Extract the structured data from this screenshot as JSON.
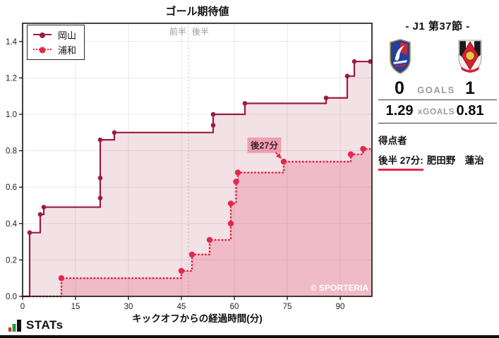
{
  "chart_data": {
    "type": "line",
    "title": "ゴール期待値",
    "xlabel": "キックオフからの経過時間(分)",
    "ylabel": "",
    "xlim": [
      0,
      99
    ],
    "ylim": [
      0,
      1.5
    ],
    "xticks": [
      0,
      15,
      30,
      45,
      60,
      75,
      90
    ],
    "yticks": [
      0.0,
      0.2,
      0.4,
      0.6,
      0.8,
      1.0,
      1.2,
      1.4
    ],
    "ytick_labels": [
      "0.0",
      "0.2",
      "0.4",
      "0.6",
      "0.8",
      "1.0",
      "1.2",
      "1.4"
    ],
    "grid": true,
    "legend_position": "upper left",
    "halftime_min": 47,
    "half_labels": {
      "first": "前半",
      "second": "後半"
    },
    "watermark": "© SPORTERIA",
    "annotation": {
      "text": "後27分",
      "target_min": 74,
      "target_xg": 0.74,
      "label_min": 68.5,
      "label_xg": 0.83
    },
    "series": [
      {
        "key": "okayama",
        "name": "岡山",
        "color": "#9b1c3f",
        "fill": "rgba(155,28,63,0.13)",
        "line_style": "solid",
        "marker_r": 3.3,
        "final_xg": 1.29,
        "steps": [
          [
            0,
            0
          ],
          [
            2,
            0.35
          ],
          [
            5,
            0.45
          ],
          [
            6,
            0.49
          ],
          [
            22,
            0.86
          ],
          [
            26,
            0.9
          ],
          [
            54,
            1.0
          ],
          [
            63,
            1.06
          ],
          [
            86,
            1.09
          ],
          [
            92,
            1.21
          ],
          [
            94,
            1.29
          ]
        ],
        "markers": [
          [
            2,
            0.35
          ],
          [
            5,
            0.45
          ],
          [
            6,
            0.49
          ],
          [
            22,
            0.54
          ],
          [
            22,
            0.65
          ],
          [
            22,
            0.86
          ],
          [
            26,
            0.9
          ],
          [
            54,
            0.94
          ],
          [
            54,
            1.0
          ],
          [
            63,
            1.06
          ],
          [
            86,
            1.09
          ],
          [
            92,
            1.21
          ],
          [
            94,
            1.29
          ],
          [
            98.5,
            1.29
          ]
        ]
      },
      {
        "key": "urawa",
        "name": "浦和",
        "color": "#e8254a",
        "fill": "rgba(232,37,74,0.20)",
        "line_style": "dotted",
        "marker_r": 4.2,
        "final_xg": 0.81,
        "steps": [
          [
            0,
            0
          ],
          [
            11,
            0.1
          ],
          [
            45,
            0.14
          ],
          [
            48,
            0.23
          ],
          [
            53,
            0.31
          ],
          [
            59,
            0.51
          ],
          [
            60.5,
            0.63
          ],
          [
            61,
            0.68
          ],
          [
            74,
            0.74
          ],
          [
            93,
            0.78
          ],
          [
            96.5,
            0.81
          ]
        ],
        "markers": [
          [
            11,
            0.1
          ],
          [
            45,
            0.14
          ],
          [
            48,
            0.23
          ],
          [
            53,
            0.31
          ],
          [
            59,
            0.4
          ],
          [
            59,
            0.51
          ],
          [
            60.5,
            0.63
          ],
          [
            61,
            0.68
          ],
          [
            74,
            0.74
          ],
          [
            93,
            0.78
          ],
          [
            96.5,
            0.81
          ]
        ]
      }
    ]
  },
  "panel": {
    "title": "- J1 第37節 -",
    "score": {
      "home": "0",
      "label": "GOALS",
      "away": "1"
    },
    "xgoals": {
      "home": "1.29",
      "label": "xGOALS",
      "away": "0.81"
    },
    "scorers_heading": "得点者",
    "scorer": {
      "time": "後半 27分:",
      "name": "肥田野　蓮治"
    }
  },
  "footer": {
    "brand": "STATs"
  }
}
